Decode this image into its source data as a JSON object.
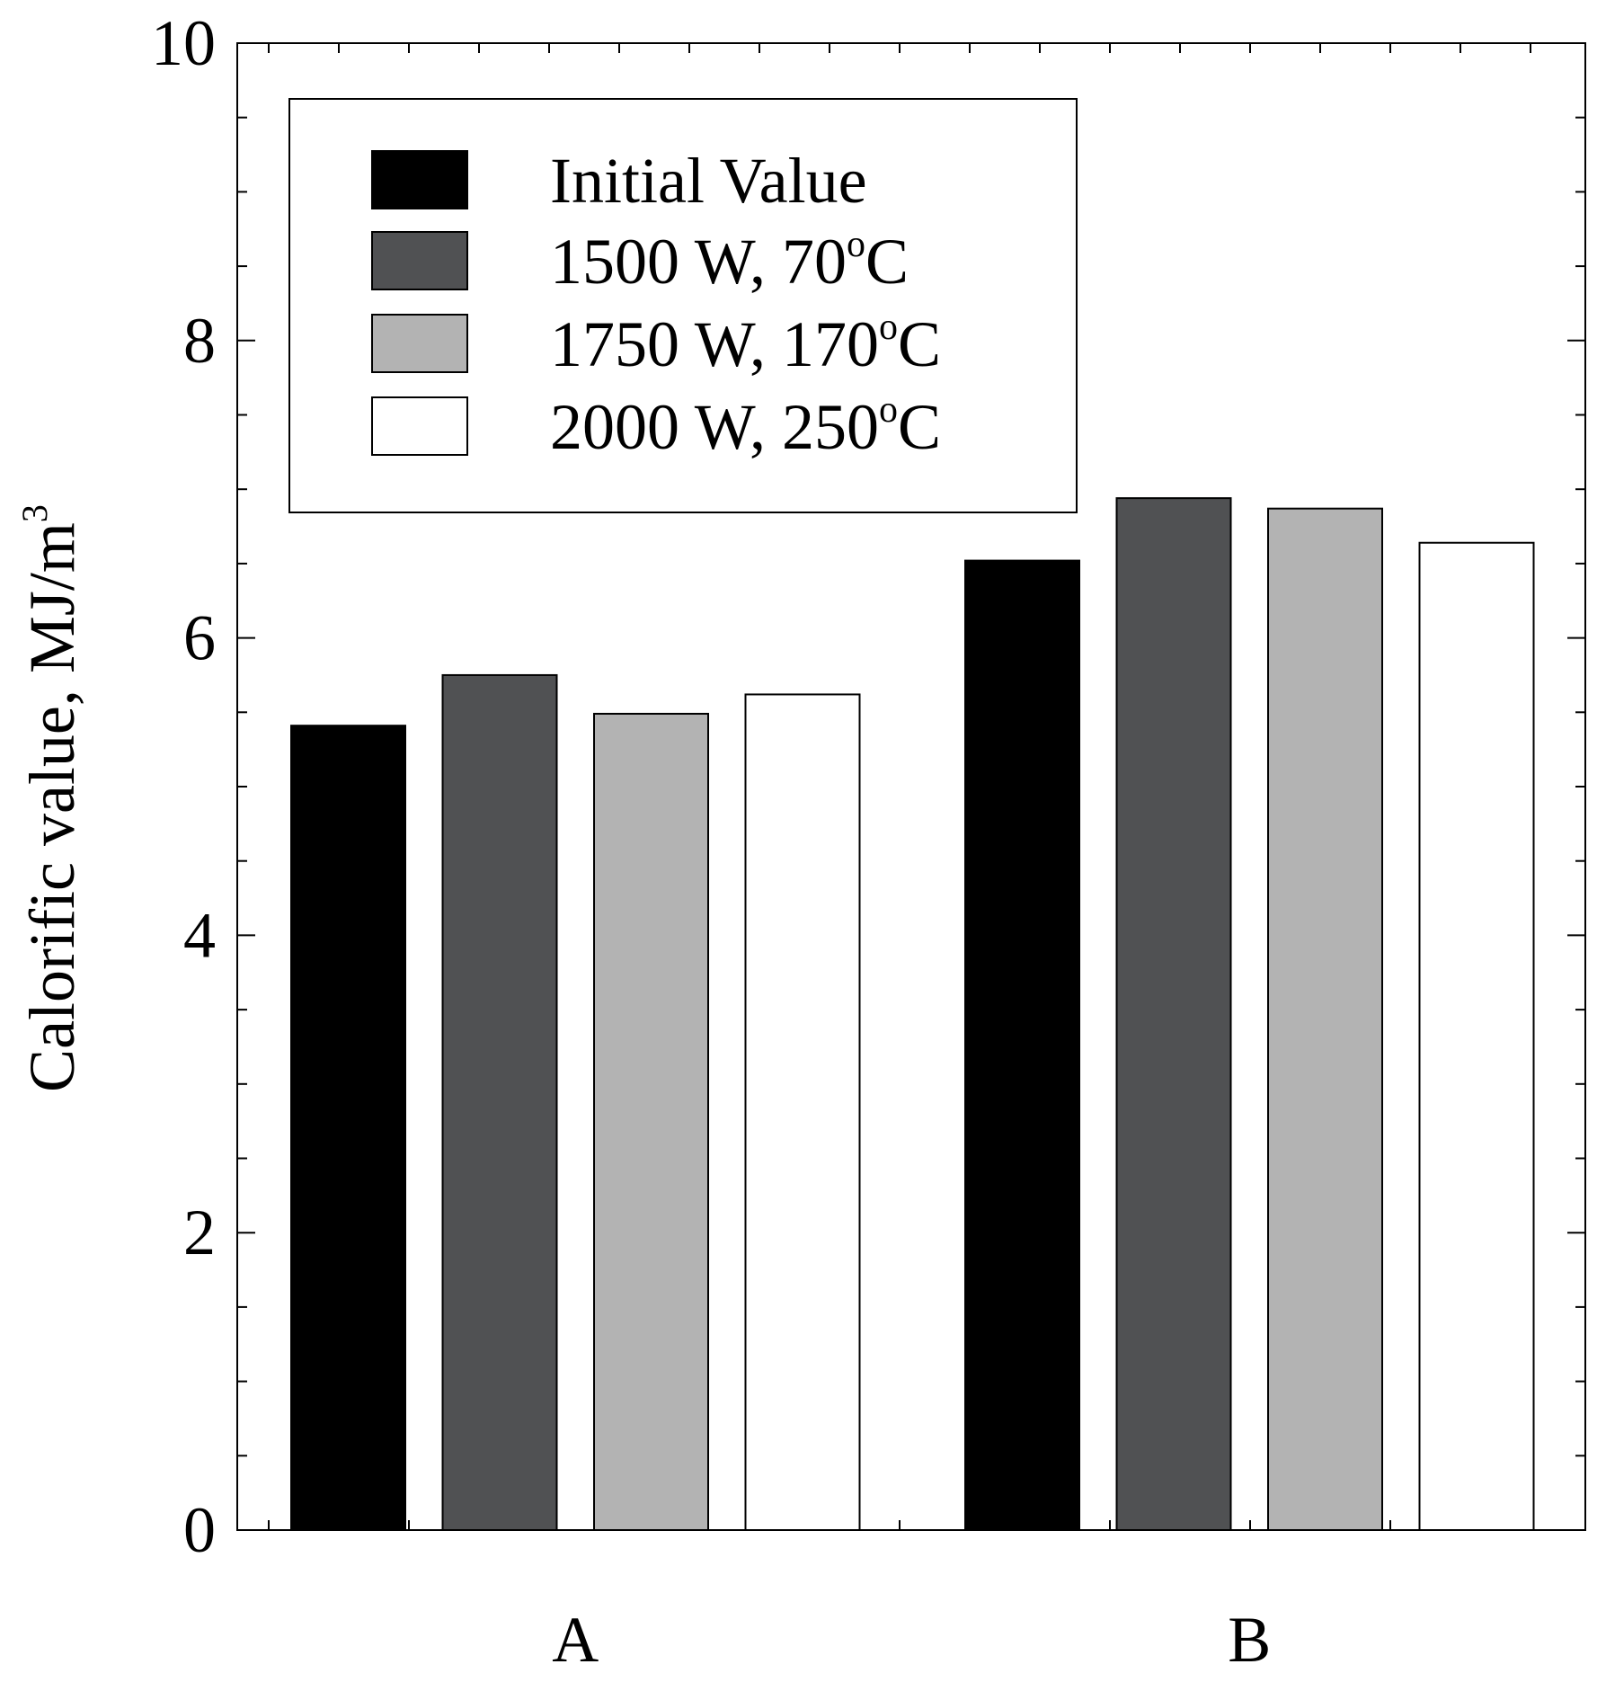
{
  "chart_data": {
    "type": "bar",
    "title": "",
    "xlabel": "",
    "ylabel": "Calorific value, MJ/m",
    "ylabel_superscript": "3",
    "categories": [
      "A",
      "B"
    ],
    "ylim": [
      0,
      10
    ],
    "yticks": [
      "0",
      "2",
      "4",
      "6",
      "8",
      "10"
    ],
    "grid": false,
    "legend_position": "top-left",
    "series": [
      {
        "name": "Initial Value",
        "color": "#000000",
        "values": [
          5.41,
          6.52
        ]
      },
      {
        "name": "1500 W, 70°C",
        "label_main": "1500 W, 70",
        "label_sup": "o",
        "label_end": "C",
        "color": "#505153",
        "values": [
          5.75,
          6.94
        ]
      },
      {
        "name": "1750 W, 170°C",
        "label_main": "1750 W, 170",
        "label_sup": "o",
        "label_end": "C",
        "color": "#b3b3b3",
        "values": [
          5.49,
          6.87
        ]
      },
      {
        "name": "2000 W, 250°C",
        "label_main": "2000 W, 250",
        "label_sup": "o",
        "label_end": "C",
        "color": "#ffffff",
        "values": [
          5.62,
          6.64
        ]
      }
    ]
  }
}
